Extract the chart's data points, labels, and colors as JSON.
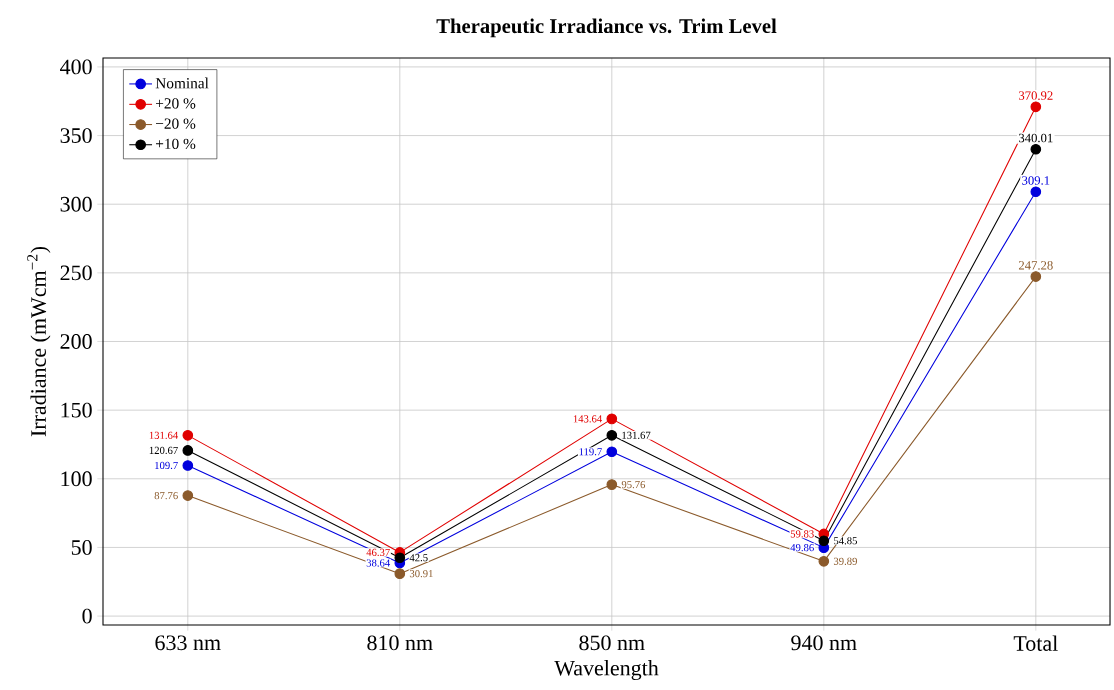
{
  "chart_data": {
    "type": "line",
    "title": "Therapeutic Irradiance vs. Trim Level",
    "xlabel": "Wavelength",
    "ylabel": "Irradiance (mWcm$^{−2}$)",
    "categories": [
      "633 nm",
      "810 nm",
      "850 nm",
      "940 nm",
      "Total"
    ],
    "series": [
      {
        "name": "Nominal",
        "color": "#0000dd",
        "values": [
          109.7,
          38.64,
          119.7,
          49.86,
          309.1
        ]
      },
      {
        "name": "+20 %",
        "color": "#e00000",
        "values": [
          131.64,
          46.37,
          143.64,
          59.83,
          370.92
        ]
      },
      {
        "name": "−20 %",
        "color": "#8b5a2b",
        "values": [
          87.76,
          30.91,
          95.76,
          39.89,
          247.28
        ]
      },
      {
        "name": "+10 %",
        "color": "#000000",
        "values": [
          120.67,
          42.5,
          131.67,
          54.85,
          340.01
        ]
      }
    ],
    "ylim": [
      -6.5,
      406.5
    ],
    "yticks": [
      0,
      50,
      100,
      150,
      200,
      250,
      300,
      350,
      400
    ],
    "grid": true,
    "legend": "top left",
    "marker": "circle",
    "line_style": "solid",
    "data_labels": true
  }
}
